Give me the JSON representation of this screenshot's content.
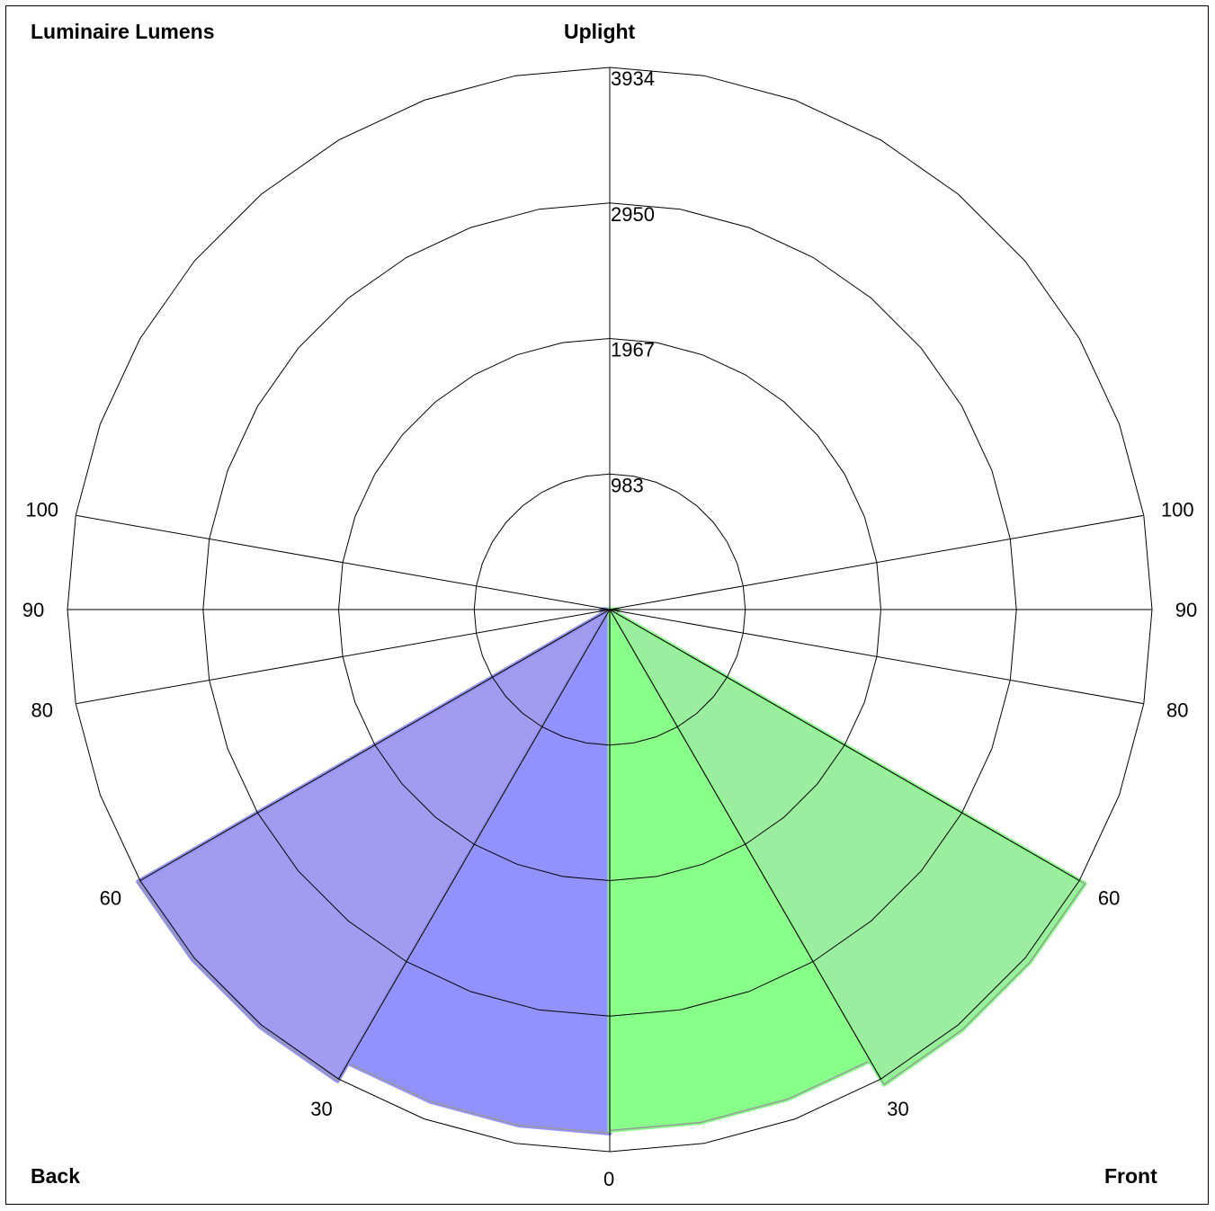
{
  "labels": {
    "top_left": "Luminaire Lumens",
    "top_center": "Uplight",
    "bottom_left": "Back",
    "bottom_right": "Front"
  },
  "chart_data": {
    "type": "polar",
    "radial_axis": {
      "max": 3934,
      "rings": [
        983,
        1967,
        2950,
        3934
      ],
      "ring_labels": [
        "983",
        "1967",
        "2950",
        "3934"
      ]
    },
    "angle_axis": {
      "ticks": [
        0,
        30,
        60,
        80,
        90,
        100
      ],
      "tick_labels_left": [
        "0",
        "30",
        "60",
        "80",
        "90",
        "100"
      ],
      "tick_labels_right": [
        "30",
        "60",
        "80",
        "90",
        "100"
      ]
    },
    "series": [
      {
        "side": "back",
        "color": "#9292ff",
        "wedges": [
          {
            "from_deg": 0,
            "to_deg": 30,
            "value": 3800,
            "color": "#9292ff"
          },
          {
            "from_deg": 30,
            "to_deg": 60,
            "value": 3950,
            "color": "#a39bf0"
          },
          {
            "from_deg": 60,
            "to_deg": 90,
            "value": 60,
            "color": "#a39bf0"
          }
        ]
      },
      {
        "side": "front",
        "color": "#88ff88",
        "wedges": [
          {
            "from_deg": 0,
            "to_deg": 30,
            "value": 3780,
            "color": "#88ff88"
          },
          {
            "from_deg": 30,
            "to_deg": 60,
            "value": 3980,
            "color": "#9bed9f"
          },
          {
            "from_deg": 60,
            "to_deg": 90,
            "value": 60,
            "color": "#9bed9f"
          }
        ]
      }
    ]
  }
}
